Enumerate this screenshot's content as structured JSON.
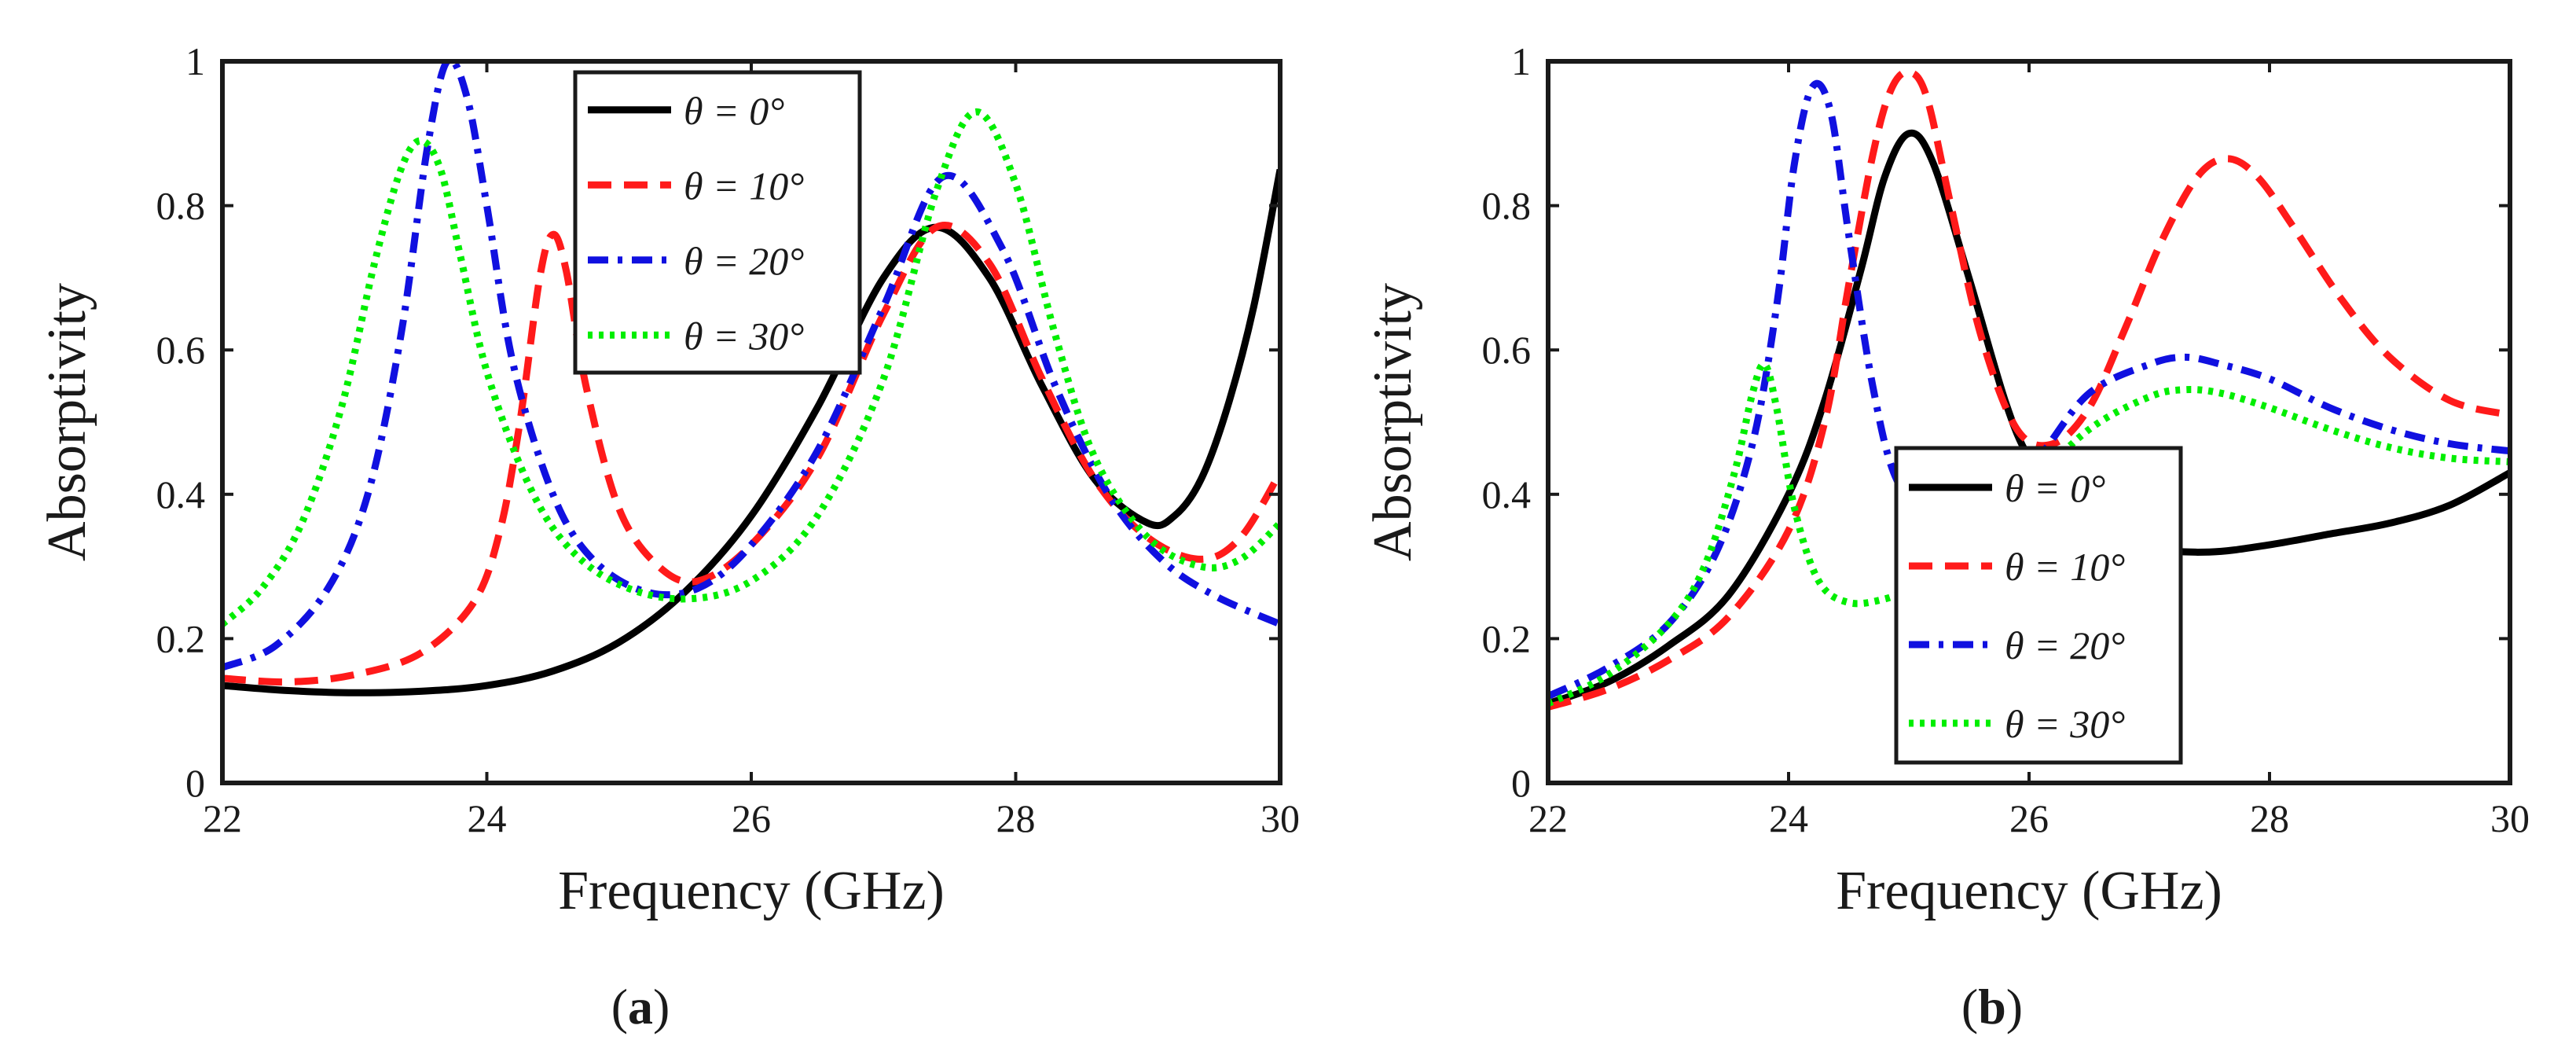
{
  "figure": {
    "colors": {
      "axis": "#1a1a1a",
      "theta0": "#000000",
      "theta10": "#ff1a1a",
      "theta20": "#1010e0",
      "theta30": "#00ee00"
    }
  },
  "chart_data": [
    {
      "type": "line",
      "panel_label_prefix": "(",
      "panel_label_letter": "a",
      "panel_label_suffix": ")",
      "xlabel": "Frequency (GHz)",
      "ylabel": "Absorptivity",
      "xlim": [
        22,
        30
      ],
      "ylim": [
        0,
        1
      ],
      "xticks": [
        "22",
        "24",
        "26",
        "28",
        "30"
      ],
      "yticks": [
        "0",
        "0.2",
        "0.4",
        "0.6",
        "0.8",
        "1"
      ],
      "legend_position": "top-center",
      "series": [
        {
          "name": "θ = 0°",
          "style": "solid",
          "color": "#000000",
          "x": [
            22.0,
            22.5,
            23.0,
            23.5,
            24.0,
            24.5,
            25.0,
            25.5,
            26.0,
            26.5,
            27.0,
            27.4,
            27.8,
            28.2,
            28.6,
            29.0,
            29.2,
            29.4,
            29.6,
            29.8,
            30.0
          ],
          "y": [
            0.135,
            0.128,
            0.125,
            0.127,
            0.135,
            0.155,
            0.195,
            0.265,
            0.37,
            0.52,
            0.7,
            0.77,
            0.7,
            0.55,
            0.42,
            0.36,
            0.37,
            0.42,
            0.52,
            0.66,
            0.85
          ]
        },
        {
          "name": "θ = 10°",
          "style": "dashed",
          "color": "#ff1a1a",
          "x": [
            22.0,
            22.5,
            23.0,
            23.5,
            23.9,
            24.1,
            24.25,
            24.4,
            24.5,
            24.6,
            24.75,
            25.0,
            25.3,
            25.6,
            26.0,
            26.5,
            27.0,
            27.4,
            27.8,
            28.2,
            28.6,
            29.0,
            29.4,
            29.7,
            30.0
          ],
          "y": [
            0.145,
            0.14,
            0.15,
            0.18,
            0.25,
            0.35,
            0.5,
            0.7,
            0.76,
            0.71,
            0.55,
            0.38,
            0.3,
            0.28,
            0.33,
            0.45,
            0.65,
            0.77,
            0.72,
            0.56,
            0.42,
            0.34,
            0.31,
            0.34,
            0.43
          ]
        },
        {
          "name": "θ = 20°",
          "style": "dashdot",
          "color": "#1010e0",
          "x": [
            22.0,
            22.4,
            22.8,
            23.1,
            23.35,
            23.55,
            23.7,
            23.85,
            24.0,
            24.2,
            24.5,
            24.8,
            25.2,
            25.6,
            26.0,
            26.5,
            27.0,
            27.45,
            27.9,
            28.3,
            28.7,
            29.1,
            29.5,
            30.0
          ],
          "y": [
            0.16,
            0.19,
            0.27,
            0.4,
            0.62,
            0.88,
            1.0,
            0.95,
            0.8,
            0.58,
            0.4,
            0.31,
            0.265,
            0.27,
            0.33,
            0.46,
            0.66,
            0.84,
            0.74,
            0.55,
            0.4,
            0.31,
            0.26,
            0.22
          ]
        },
        {
          "name": "θ = 30°",
          "style": "dotted",
          "color": "#00ee00",
          "x": [
            22.0,
            22.3,
            22.6,
            22.9,
            23.15,
            23.35,
            23.5,
            23.65,
            23.8,
            24.0,
            24.3,
            24.6,
            25.0,
            25.5,
            26.0,
            26.5,
            27.0,
            27.4,
            27.7,
            28.0,
            28.3,
            28.6,
            29.0,
            29.4,
            29.7,
            30.0
          ],
          "y": [
            0.22,
            0.27,
            0.36,
            0.52,
            0.72,
            0.85,
            0.89,
            0.85,
            0.73,
            0.57,
            0.42,
            0.33,
            0.275,
            0.255,
            0.28,
            0.37,
            0.56,
            0.82,
            0.93,
            0.83,
            0.62,
            0.45,
            0.34,
            0.3,
            0.31,
            0.36
          ]
        }
      ]
    },
    {
      "type": "line",
      "panel_label_prefix": "(",
      "panel_label_letter": "b",
      "panel_label_suffix": ")",
      "xlabel": "Frequency (GHz)",
      "ylabel": "Absorptivity",
      "xlim": [
        22,
        30
      ],
      "ylim": [
        0,
        1
      ],
      "xticks": [
        "22",
        "24",
        "26",
        "28",
        "30"
      ],
      "yticks": [
        "0",
        "0.2",
        "0.4",
        "0.6",
        "0.8",
        "1"
      ],
      "legend_position": "bottom-center",
      "series": [
        {
          "name": "θ = 0°",
          "style": "solid",
          "color": "#000000",
          "x": [
            22.0,
            22.5,
            23.0,
            23.5,
            24.0,
            24.3,
            24.6,
            24.8,
            25.0,
            25.2,
            25.5,
            25.8,
            26.0,
            26.3,
            26.6,
            27.0,
            27.5,
            28.0,
            28.5,
            29.0,
            29.5,
            30.0
          ],
          "y": [
            0.11,
            0.14,
            0.19,
            0.26,
            0.4,
            0.53,
            0.71,
            0.84,
            0.9,
            0.86,
            0.7,
            0.53,
            0.45,
            0.38,
            0.345,
            0.325,
            0.32,
            0.33,
            0.345,
            0.36,
            0.385,
            0.43
          ]
        },
        {
          "name": "θ = 10°",
          "style": "dashed",
          "color": "#ff1a1a",
          "x": [
            22.0,
            22.5,
            23.0,
            23.5,
            24.0,
            24.3,
            24.5,
            24.7,
            24.85,
            25.0,
            25.15,
            25.35,
            25.6,
            25.9,
            26.2,
            26.5,
            26.8,
            27.1,
            27.4,
            27.65,
            27.9,
            28.2,
            28.6,
            29.0,
            29.5,
            30.0
          ],
          "y": [
            0.105,
            0.13,
            0.17,
            0.23,
            0.35,
            0.5,
            0.69,
            0.87,
            0.96,
            0.985,
            0.95,
            0.8,
            0.62,
            0.49,
            0.47,
            0.52,
            0.63,
            0.75,
            0.84,
            0.865,
            0.84,
            0.77,
            0.67,
            0.59,
            0.53,
            0.51
          ]
        },
        {
          "name": "θ = 20°",
          "style": "dashdot",
          "color": "#1010e0",
          "x": [
            22.0,
            22.5,
            23.0,
            23.4,
            23.7,
            23.9,
            24.05,
            24.2,
            24.35,
            24.5,
            24.7,
            24.9,
            25.2,
            25.5,
            25.8,
            26.1,
            26.5,
            27.0,
            27.3,
            27.6,
            28.0,
            28.5,
            29.0,
            29.5,
            30.0
          ],
          "y": [
            0.12,
            0.16,
            0.22,
            0.32,
            0.47,
            0.66,
            0.86,
            0.965,
            0.93,
            0.76,
            0.55,
            0.42,
            0.37,
            0.38,
            0.4,
            0.455,
            0.54,
            0.58,
            0.59,
            0.58,
            0.56,
            0.52,
            0.49,
            0.47,
            0.46
          ]
        },
        {
          "name": "θ = 30°",
          "style": "dotted",
          "color": "#00ee00",
          "x": [
            22.0,
            22.5,
            23.0,
            23.3,
            23.55,
            23.7,
            23.8,
            23.9,
            24.05,
            24.25,
            24.5,
            24.8,
            25.0,
            25.3,
            25.6,
            26.0,
            26.5,
            27.0,
            27.3,
            27.6,
            28.0,
            28.5,
            29.0,
            29.5,
            30.0
          ],
          "y": [
            0.11,
            0.15,
            0.22,
            0.3,
            0.43,
            0.54,
            0.58,
            0.52,
            0.38,
            0.28,
            0.25,
            0.255,
            0.27,
            0.3,
            0.34,
            0.41,
            0.49,
            0.535,
            0.545,
            0.54,
            0.52,
            0.49,
            0.465,
            0.45,
            0.445
          ]
        }
      ]
    }
  ]
}
